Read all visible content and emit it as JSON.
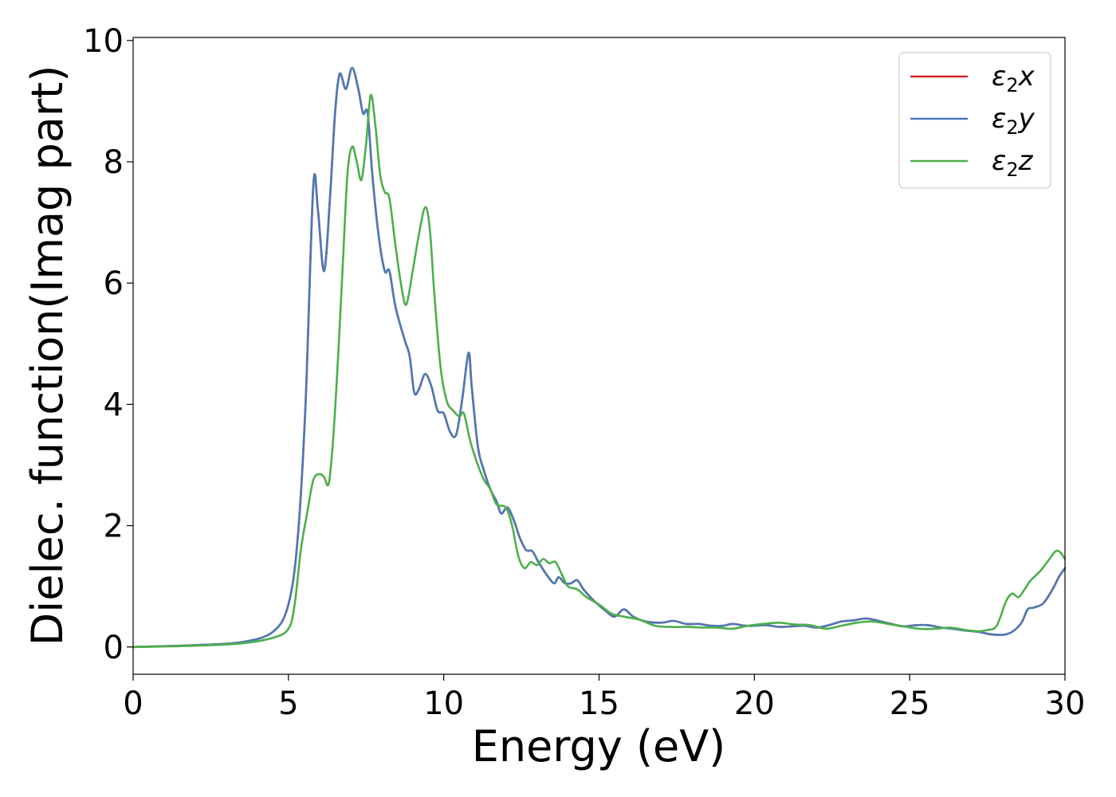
{
  "chart_data": {
    "type": "line",
    "title": "",
    "xlabel": "Energy (eV)",
    "ylabel": "Dielec. function(Imag part)",
    "xlim": [
      0,
      30
    ],
    "ylim": [
      -0.45,
      10.05
    ],
    "xticks": [
      0,
      5,
      10,
      15,
      20,
      25,
      30
    ],
    "yticks": [
      0,
      2,
      4,
      6,
      8,
      10
    ],
    "xtick_labels": [
      "0",
      "5",
      "10",
      "15",
      "20",
      "25",
      "30"
    ],
    "ytick_labels": [
      "0",
      "2",
      "4",
      "6",
      "8",
      "10"
    ],
    "grid": false,
    "legend_position": "top-right",
    "series": [
      {
        "name": "ε₂x",
        "legend_base": "ε",
        "legend_sub": "2",
        "legend_suffix": "x",
        "color": "#d62728",
        "points": [
          [
            0,
            0
          ],
          [
            2,
            0.03
          ],
          [
            3.5,
            0.08
          ],
          [
            4.5,
            0.25
          ],
          [
            5.0,
            0.7
          ],
          [
            5.3,
            1.8
          ],
          [
            5.55,
            4.0
          ],
          [
            5.8,
            7.6
          ],
          [
            5.95,
            7.2
          ],
          [
            6.15,
            6.2
          ],
          [
            6.35,
            7.5
          ],
          [
            6.5,
            8.8
          ],
          [
            6.65,
            9.45
          ],
          [
            6.85,
            9.2
          ],
          [
            7.05,
            9.55
          ],
          [
            7.25,
            9.2
          ],
          [
            7.4,
            8.8
          ],
          [
            7.55,
            8.8
          ],
          [
            7.7,
            7.8
          ],
          [
            7.9,
            6.8
          ],
          [
            8.1,
            6.2
          ],
          [
            8.25,
            6.2
          ],
          [
            8.45,
            5.6
          ],
          [
            8.75,
            5.05
          ],
          [
            8.9,
            4.8
          ],
          [
            9.05,
            4.2
          ],
          [
            9.2,
            4.25
          ],
          [
            9.4,
            4.5
          ],
          [
            9.6,
            4.3
          ],
          [
            9.8,
            3.9
          ],
          [
            10.0,
            3.85
          ],
          [
            10.2,
            3.55
          ],
          [
            10.4,
            3.5
          ],
          [
            10.6,
            4.1
          ],
          [
            10.8,
            4.85
          ],
          [
            10.9,
            4.3
          ],
          [
            11.1,
            3.3
          ],
          [
            11.3,
            2.9
          ],
          [
            11.5,
            2.6
          ],
          [
            11.7,
            2.4
          ],
          [
            11.85,
            2.2
          ],
          [
            12.05,
            2.3
          ],
          [
            12.25,
            2.1
          ],
          [
            12.45,
            1.8
          ],
          [
            12.65,
            1.6
          ],
          [
            12.85,
            1.58
          ],
          [
            13.05,
            1.4
          ],
          [
            13.3,
            1.2
          ],
          [
            13.55,
            1.05
          ],
          [
            13.7,
            1.15
          ],
          [
            13.9,
            1.05
          ],
          [
            14.1,
            1.05
          ],
          [
            14.3,
            1.1
          ],
          [
            14.5,
            0.95
          ],
          [
            14.8,
            0.78
          ],
          [
            15.2,
            0.6
          ],
          [
            15.5,
            0.5
          ],
          [
            15.8,
            0.62
          ],
          [
            16.1,
            0.5
          ],
          [
            16.5,
            0.42
          ],
          [
            17.0,
            0.4
          ],
          [
            17.4,
            0.43
          ],
          [
            17.8,
            0.38
          ],
          [
            18.2,
            0.38
          ],
          [
            18.6,
            0.35
          ],
          [
            19.0,
            0.35
          ],
          [
            19.3,
            0.38
          ],
          [
            19.7,
            0.35
          ],
          [
            20.0,
            0.35
          ],
          [
            20.4,
            0.36
          ],
          [
            20.8,
            0.33
          ],
          [
            21.2,
            0.34
          ],
          [
            21.6,
            0.35
          ],
          [
            22.0,
            0.32
          ],
          [
            22.4,
            0.36
          ],
          [
            22.8,
            0.42
          ],
          [
            23.2,
            0.44
          ],
          [
            23.6,
            0.47
          ],
          [
            24.0,
            0.43
          ],
          [
            24.4,
            0.38
          ],
          [
            24.8,
            0.34
          ],
          [
            25.2,
            0.36
          ],
          [
            25.6,
            0.36
          ],
          [
            26.0,
            0.32
          ],
          [
            26.4,
            0.3
          ],
          [
            26.8,
            0.27
          ],
          [
            27.2,
            0.25
          ],
          [
            27.6,
            0.21
          ],
          [
            28.0,
            0.2
          ],
          [
            28.3,
            0.25
          ],
          [
            28.6,
            0.4
          ],
          [
            28.8,
            0.62
          ],
          [
            29.0,
            0.65
          ],
          [
            29.3,
            0.72
          ],
          [
            29.6,
            0.95
          ],
          [
            29.8,
            1.15
          ],
          [
            30.0,
            1.3
          ]
        ]
      },
      {
        "name": "ε₂y",
        "legend_base": "ε",
        "legend_sub": "2",
        "legend_suffix": "y",
        "color": "#4a7ab5",
        "points": [
          [
            0,
            0
          ],
          [
            2,
            0.03
          ],
          [
            3.5,
            0.08
          ],
          [
            4.5,
            0.25
          ],
          [
            5.0,
            0.7
          ],
          [
            5.3,
            1.8
          ],
          [
            5.55,
            4.0
          ],
          [
            5.8,
            7.6
          ],
          [
            5.95,
            7.2
          ],
          [
            6.15,
            6.2
          ],
          [
            6.35,
            7.5
          ],
          [
            6.5,
            8.8
          ],
          [
            6.65,
            9.45
          ],
          [
            6.85,
            9.2
          ],
          [
            7.05,
            9.55
          ],
          [
            7.25,
            9.2
          ],
          [
            7.4,
            8.8
          ],
          [
            7.55,
            8.8
          ],
          [
            7.7,
            7.8
          ],
          [
            7.9,
            6.8
          ],
          [
            8.1,
            6.2
          ],
          [
            8.25,
            6.2
          ],
          [
            8.45,
            5.6
          ],
          [
            8.75,
            5.05
          ],
          [
            8.9,
            4.8
          ],
          [
            9.05,
            4.2
          ],
          [
            9.2,
            4.25
          ],
          [
            9.4,
            4.5
          ],
          [
            9.6,
            4.3
          ],
          [
            9.8,
            3.9
          ],
          [
            10.0,
            3.85
          ],
          [
            10.2,
            3.55
          ],
          [
            10.4,
            3.5
          ],
          [
            10.6,
            4.1
          ],
          [
            10.8,
            4.85
          ],
          [
            10.9,
            4.3
          ],
          [
            11.1,
            3.3
          ],
          [
            11.3,
            2.9
          ],
          [
            11.5,
            2.6
          ],
          [
            11.7,
            2.4
          ],
          [
            11.85,
            2.2
          ],
          [
            12.05,
            2.3
          ],
          [
            12.25,
            2.1
          ],
          [
            12.45,
            1.8
          ],
          [
            12.65,
            1.6
          ],
          [
            12.85,
            1.58
          ],
          [
            13.05,
            1.4
          ],
          [
            13.3,
            1.2
          ],
          [
            13.55,
            1.05
          ],
          [
            13.7,
            1.15
          ],
          [
            13.9,
            1.05
          ],
          [
            14.1,
            1.05
          ],
          [
            14.3,
            1.1
          ],
          [
            14.5,
            0.95
          ],
          [
            14.8,
            0.78
          ],
          [
            15.2,
            0.6
          ],
          [
            15.5,
            0.5
          ],
          [
            15.8,
            0.62
          ],
          [
            16.1,
            0.5
          ],
          [
            16.5,
            0.42
          ],
          [
            17.0,
            0.4
          ],
          [
            17.4,
            0.43
          ],
          [
            17.8,
            0.38
          ],
          [
            18.2,
            0.38
          ],
          [
            18.6,
            0.35
          ],
          [
            19.0,
            0.35
          ],
          [
            19.3,
            0.38
          ],
          [
            19.7,
            0.35
          ],
          [
            20.0,
            0.35
          ],
          [
            20.4,
            0.36
          ],
          [
            20.8,
            0.33
          ],
          [
            21.2,
            0.34
          ],
          [
            21.6,
            0.35
          ],
          [
            22.0,
            0.32
          ],
          [
            22.4,
            0.36
          ],
          [
            22.8,
            0.42
          ],
          [
            23.2,
            0.44
          ],
          [
            23.6,
            0.47
          ],
          [
            24.0,
            0.43
          ],
          [
            24.4,
            0.38
          ],
          [
            24.8,
            0.34
          ],
          [
            25.2,
            0.36
          ],
          [
            25.6,
            0.36
          ],
          [
            26.0,
            0.32
          ],
          [
            26.4,
            0.3
          ],
          [
            26.8,
            0.27
          ],
          [
            27.2,
            0.25
          ],
          [
            27.6,
            0.21
          ],
          [
            28.0,
            0.2
          ],
          [
            28.3,
            0.25
          ],
          [
            28.6,
            0.4
          ],
          [
            28.8,
            0.62
          ],
          [
            29.0,
            0.65
          ],
          [
            29.3,
            0.72
          ],
          [
            29.6,
            0.95
          ],
          [
            29.8,
            1.15
          ],
          [
            30.0,
            1.3
          ]
        ]
      },
      {
        "name": "ε₂z",
        "legend_base": "ε",
        "legend_sub": "2",
        "legend_suffix": "z",
        "color": "#4daf4a",
        "points": [
          [
            0,
            0
          ],
          [
            2,
            0.02
          ],
          [
            3.5,
            0.06
          ],
          [
            4.5,
            0.15
          ],
          [
            5.0,
            0.3
          ],
          [
            5.2,
            0.7
          ],
          [
            5.4,
            1.6
          ],
          [
            5.6,
            2.2
          ],
          [
            5.8,
            2.75
          ],
          [
            6.0,
            2.85
          ],
          [
            6.15,
            2.8
          ],
          [
            6.3,
            2.7
          ],
          [
            6.45,
            3.5
          ],
          [
            6.6,
            4.8
          ],
          [
            6.75,
            6.3
          ],
          [
            6.9,
            7.8
          ],
          [
            7.05,
            8.25
          ],
          [
            7.2,
            8.0
          ],
          [
            7.35,
            7.7
          ],
          [
            7.5,
            8.3
          ],
          [
            7.65,
            9.1
          ],
          [
            7.8,
            8.6
          ],
          [
            7.95,
            7.8
          ],
          [
            8.1,
            7.5
          ],
          [
            8.25,
            7.4
          ],
          [
            8.45,
            6.6
          ],
          [
            8.65,
            5.9
          ],
          [
            8.8,
            5.65
          ],
          [
            9.0,
            6.2
          ],
          [
            9.2,
            6.8
          ],
          [
            9.4,
            7.25
          ],
          [
            9.55,
            6.9
          ],
          [
            9.7,
            5.8
          ],
          [
            9.9,
            4.6
          ],
          [
            10.1,
            4.05
          ],
          [
            10.3,
            3.9
          ],
          [
            10.5,
            3.8
          ],
          [
            10.65,
            3.85
          ],
          [
            10.85,
            3.4
          ],
          [
            11.1,
            3.0
          ],
          [
            11.3,
            2.75
          ],
          [
            11.5,
            2.6
          ],
          [
            11.7,
            2.35
          ],
          [
            12.0,
            2.3
          ],
          [
            12.2,
            2.0
          ],
          [
            12.4,
            1.5
          ],
          [
            12.6,
            1.3
          ],
          [
            12.8,
            1.4
          ],
          [
            13.0,
            1.35
          ],
          [
            13.2,
            1.45
          ],
          [
            13.4,
            1.38
          ],
          [
            13.6,
            1.4
          ],
          [
            13.8,
            1.2
          ],
          [
            14.0,
            1.0
          ],
          [
            14.3,
            0.95
          ],
          [
            14.6,
            0.82
          ],
          [
            15.0,
            0.7
          ],
          [
            15.4,
            0.55
          ],
          [
            15.8,
            0.5
          ],
          [
            16.3,
            0.45
          ],
          [
            16.8,
            0.35
          ],
          [
            17.3,
            0.33
          ],
          [
            17.8,
            0.33
          ],
          [
            18.3,
            0.32
          ],
          [
            18.8,
            0.32
          ],
          [
            19.3,
            0.3
          ],
          [
            19.8,
            0.35
          ],
          [
            20.3,
            0.38
          ],
          [
            20.8,
            0.4
          ],
          [
            21.3,
            0.37
          ],
          [
            21.8,
            0.36
          ],
          [
            22.3,
            0.3
          ],
          [
            22.8,
            0.35
          ],
          [
            23.3,
            0.4
          ],
          [
            23.8,
            0.42
          ],
          [
            24.3,
            0.38
          ],
          [
            24.8,
            0.34
          ],
          [
            25.3,
            0.3
          ],
          [
            25.8,
            0.3
          ],
          [
            26.3,
            0.32
          ],
          [
            26.8,
            0.28
          ],
          [
            27.2,
            0.26
          ],
          [
            27.5,
            0.28
          ],
          [
            27.8,
            0.35
          ],
          [
            28.1,
            0.75
          ],
          [
            28.3,
            0.88
          ],
          [
            28.5,
            0.82
          ],
          [
            28.7,
            0.95
          ],
          [
            28.9,
            1.1
          ],
          [
            29.2,
            1.25
          ],
          [
            29.5,
            1.45
          ],
          [
            29.7,
            1.58
          ],
          [
            29.85,
            1.56
          ],
          [
            30.0,
            1.45
          ]
        ]
      }
    ]
  }
}
